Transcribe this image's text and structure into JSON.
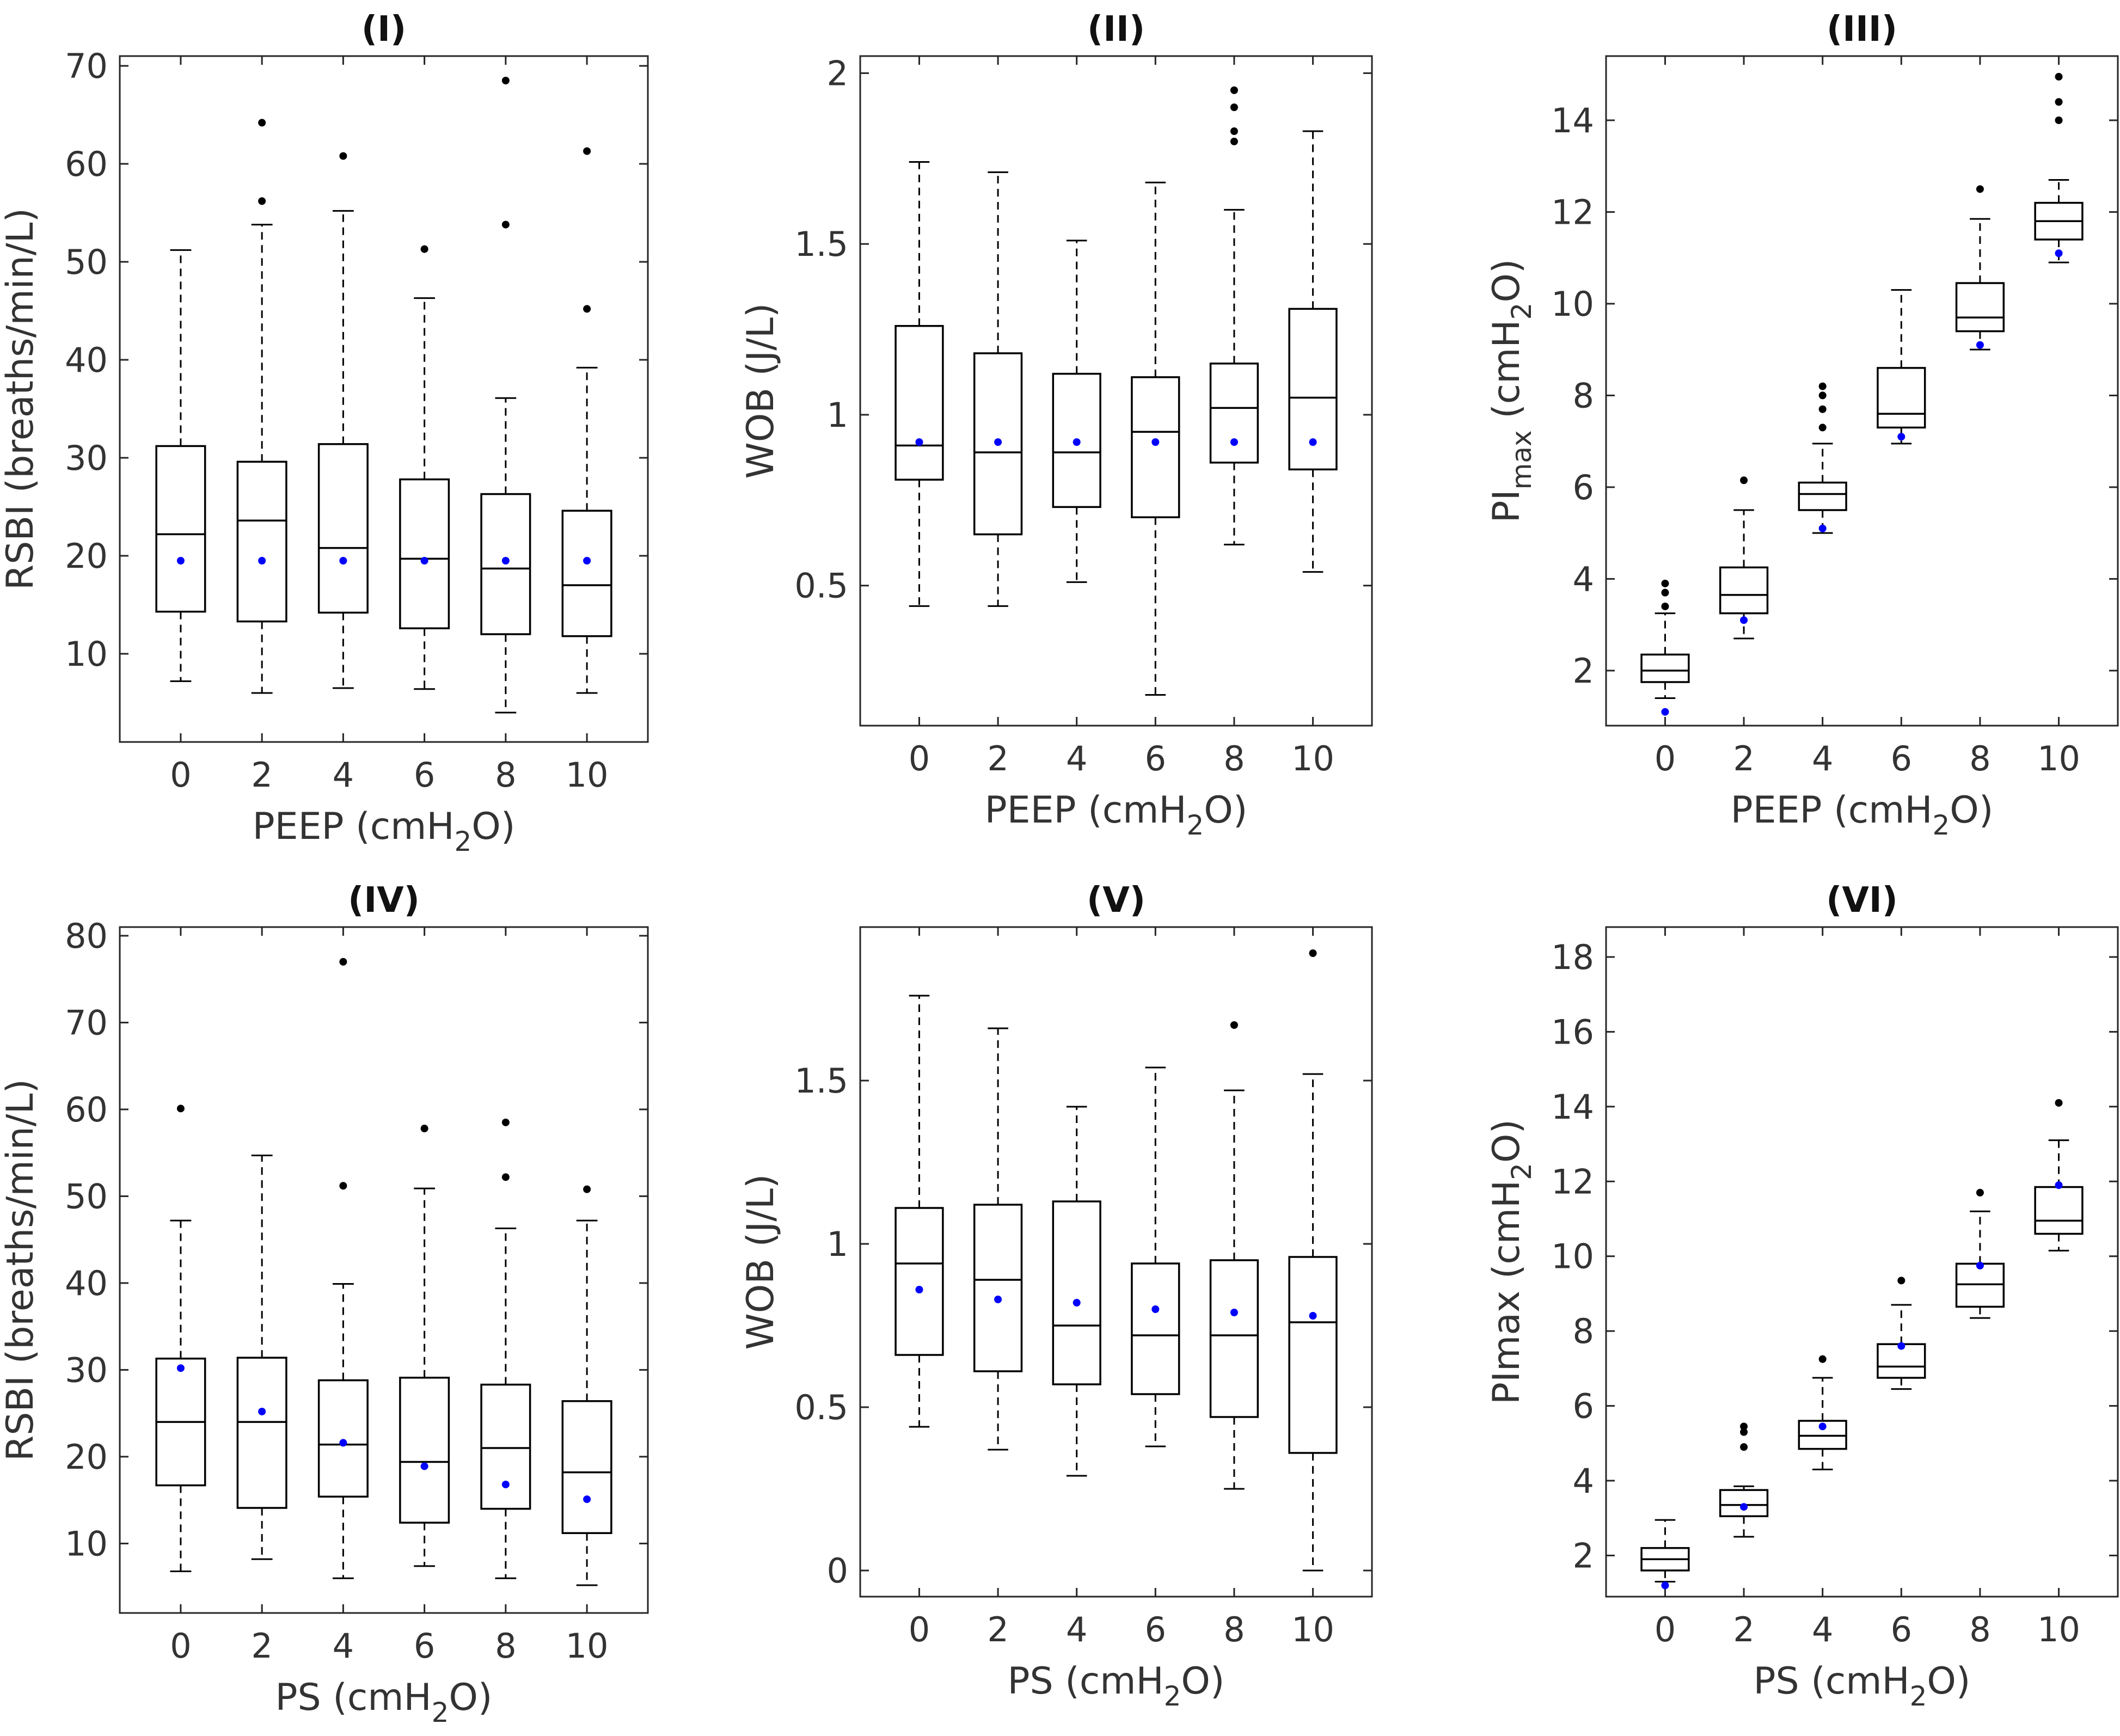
{
  "chart_data": [
    {
      "type": "box",
      "title": "(I)",
      "xlabel": {
        "main": "PEEP (cmH",
        "sub": "2",
        "tail": "O)"
      },
      "ylabel": {
        "main": "RSBI (breaths/min/L)"
      },
      "categories": [
        "0",
        "2",
        "4",
        "6",
        "8",
        "10"
      ],
      "ylim": [
        1,
        71
      ],
      "yticks": [
        10,
        20,
        30,
        40,
        50,
        60,
        70
      ],
      "boxes": [
        {
          "q1": 14.3,
          "median": 22.2,
          "q3": 31.2,
          "whisker_low": 7.2,
          "whisker_high": 51.2,
          "outliers": [],
          "mean": 19.5
        },
        {
          "q1": 13.3,
          "median": 23.6,
          "q3": 29.6,
          "whisker_low": 6.0,
          "whisker_high": 53.8,
          "outliers": [
            56.2,
            64.2
          ],
          "mean": 19.5
        },
        {
          "q1": 14.2,
          "median": 20.8,
          "q3": 31.4,
          "whisker_low": 6.5,
          "whisker_high": 55.2,
          "outliers": [
            60.8
          ],
          "mean": 19.5
        },
        {
          "q1": 12.6,
          "median": 19.7,
          "q3": 27.8,
          "whisker_low": 6.4,
          "whisker_high": 46.3,
          "outliers": [
            51.3
          ],
          "mean": 19.5
        },
        {
          "q1": 12.0,
          "median": 18.7,
          "q3": 26.3,
          "whisker_low": 4.0,
          "whisker_high": 36.1,
          "outliers": [
            53.8,
            68.5
          ],
          "mean": 19.5
        },
        {
          "q1": 11.8,
          "median": 17.0,
          "q3": 24.6,
          "whisker_low": 6.0,
          "whisker_high": 39.2,
          "outliers": [
            45.2,
            61.3
          ],
          "mean": 19.5
        }
      ]
    },
    {
      "type": "box",
      "title": "(II)",
      "xlabel": {
        "main": "PEEP (cmH",
        "sub": "2",
        "tail": "O)"
      },
      "ylabel": {
        "main": "WOB (J/L)"
      },
      "categories": [
        "0",
        "2",
        "4",
        "6",
        "8",
        "10"
      ],
      "ylim": [
        0.09,
        2.05
      ],
      "yticks": [
        0.5,
        1,
        1.5,
        2
      ],
      "yticklabels": [
        "0.5",
        "1",
        "1.5",
        "2"
      ],
      "boxes": [
        {
          "q1": 0.81,
          "median": 0.91,
          "q3": 1.26,
          "whisker_low": 0.44,
          "whisker_high": 1.74,
          "outliers": [],
          "mean": 0.92
        },
        {
          "q1": 0.65,
          "median": 0.89,
          "q3": 1.18,
          "whisker_low": 0.44,
          "whisker_high": 1.71,
          "outliers": [],
          "mean": 0.92
        },
        {
          "q1": 0.73,
          "median": 0.89,
          "q3": 1.12,
          "whisker_low": 0.51,
          "whisker_high": 1.51,
          "outliers": [],
          "mean": 0.92
        },
        {
          "q1": 0.7,
          "median": 0.95,
          "q3": 1.11,
          "whisker_low": 0.18,
          "whisker_high": 1.68,
          "outliers": [],
          "mean": 0.92
        },
        {
          "q1": 0.86,
          "median": 1.02,
          "q3": 1.15,
          "whisker_low": 0.62,
          "whisker_high": 1.6,
          "outliers": [
            1.8,
            1.83,
            1.9,
            1.95
          ],
          "mean": 0.92
        },
        {
          "q1": 0.84,
          "median": 1.05,
          "q3": 1.31,
          "whisker_low": 0.54,
          "whisker_high": 1.83,
          "outliers": [],
          "mean": 0.92
        }
      ]
    },
    {
      "type": "box",
      "title": "(III)",
      "xlabel": {
        "main": "PEEP (cmH",
        "sub": "2",
        "tail": "O)"
      },
      "ylabel": {
        "main": "PI",
        "sub": "max",
        "tail": " (cmH",
        "sub2": "2",
        "tail2": "O)"
      },
      "categories": [
        "0",
        "2",
        "4",
        "6",
        "8",
        "10"
      ],
      "ylim": [
        0.8,
        15.4
      ],
      "yticks": [
        2,
        4,
        6,
        8,
        10,
        12,
        14
      ],
      "boxes": [
        {
          "q1": 1.75,
          "median": 2.0,
          "q3": 2.35,
          "whisker_low": 1.4,
          "whisker_high": 3.25,
          "outliers": [
            3.4,
            3.7,
            3.9
          ],
          "mean": 1.1
        },
        {
          "q1": 3.25,
          "median": 3.65,
          "q3": 4.25,
          "whisker_low": 2.7,
          "whisker_high": 5.5,
          "outliers": [
            6.15
          ],
          "mean": 3.1
        },
        {
          "q1": 5.5,
          "median": 5.85,
          "q3": 6.1,
          "whisker_low": 5.0,
          "whisker_high": 6.95,
          "outliers": [
            7.3,
            7.7,
            8.0,
            8.2
          ],
          "mean": 5.1
        },
        {
          "q1": 7.3,
          "median": 7.6,
          "q3": 8.6,
          "whisker_low": 6.95,
          "whisker_high": 10.3,
          "outliers": [],
          "mean": 7.1
        },
        {
          "q1": 9.4,
          "median": 9.7,
          "q3": 10.45,
          "whisker_low": 9.0,
          "whisker_high": 11.85,
          "outliers": [
            12.5
          ],
          "mean": 9.1
        },
        {
          "q1": 11.4,
          "median": 11.8,
          "q3": 12.2,
          "whisker_low": 10.9,
          "whisker_high": 12.7,
          "outliers": [
            14.0,
            14.4,
            14.95
          ],
          "mean": 11.1
        }
      ]
    },
    {
      "type": "box",
      "title": "(IV)",
      "xlabel": {
        "main": "PS (cmH",
        "sub": "2",
        "tail": "O)"
      },
      "ylabel": {
        "main": "RSBI (breaths/min/L)"
      },
      "categories": [
        "0",
        "2",
        "4",
        "6",
        "8",
        "10"
      ],
      "ylim": [
        2,
        81
      ],
      "yticks": [
        10,
        20,
        30,
        40,
        50,
        60,
        70,
        80
      ],
      "boxes": [
        {
          "q1": 16.7,
          "median": 24.0,
          "q3": 31.3,
          "whisker_low": 6.8,
          "whisker_high": 47.2,
          "outliers": [
            60.1
          ],
          "mean": 30.2
        },
        {
          "q1": 14.1,
          "median": 24.0,
          "q3": 31.4,
          "whisker_low": 8.2,
          "whisker_high": 54.7,
          "outliers": [],
          "mean": 25.2
        },
        {
          "q1": 15.4,
          "median": 21.4,
          "q3": 28.8,
          "whisker_low": 6.0,
          "whisker_high": 39.9,
          "outliers": [
            51.2,
            77.0
          ],
          "mean": 21.6
        },
        {
          "q1": 12.4,
          "median": 19.4,
          "q3": 29.1,
          "whisker_low": 7.4,
          "whisker_high": 50.9,
          "outliers": [
            57.8
          ],
          "mean": 18.9
        },
        {
          "q1": 14.0,
          "median": 21.0,
          "q3": 28.3,
          "whisker_low": 6.0,
          "whisker_high": 46.3,
          "outliers": [
            52.2,
            58.5
          ],
          "mean": 16.8
        },
        {
          "q1": 11.2,
          "median": 18.2,
          "q3": 26.4,
          "whisker_low": 5.2,
          "whisker_high": 47.2,
          "outliers": [
            50.8
          ],
          "mean": 15.1
        }
      ]
    },
    {
      "type": "box",
      "title": "(V)",
      "xlabel": {
        "main": "PS (cmH",
        "sub": "2",
        "tail": "O)"
      },
      "ylabel": {
        "main": "WOB (J/L)"
      },
      "categories": [
        "0",
        "2",
        "4",
        "6",
        "8",
        "10"
      ],
      "ylim": [
        -0.08,
        1.97
      ],
      "yticks": [
        0,
        0.5,
        1,
        1.5
      ],
      "yticklabels": [
        "0",
        "0.5",
        "1",
        "1.5"
      ],
      "boxes": [
        {
          "q1": 0.66,
          "median": 0.94,
          "q3": 1.11,
          "whisker_low": 0.44,
          "whisker_high": 1.76,
          "outliers": [],
          "mean": 0.86
        },
        {
          "q1": 0.61,
          "median": 0.89,
          "q3": 1.12,
          "whisker_low": 0.37,
          "whisker_high": 1.66,
          "outliers": [],
          "mean": 0.83
        },
        {
          "q1": 0.57,
          "median": 0.75,
          "q3": 1.13,
          "whisker_low": 0.29,
          "whisker_high": 1.42,
          "outliers": [],
          "mean": 0.82
        },
        {
          "q1": 0.54,
          "median": 0.72,
          "q3": 0.94,
          "whisker_low": 0.38,
          "whisker_high": 1.54,
          "outliers": [],
          "mean": 0.8
        },
        {
          "q1": 0.47,
          "median": 0.72,
          "q3": 0.95,
          "whisker_low": 0.25,
          "whisker_high": 1.47,
          "outliers": [
            1.67
          ],
          "mean": 0.79
        },
        {
          "q1": 0.36,
          "median": 0.76,
          "q3": 0.96,
          "whisker_low": 0.0,
          "whisker_high": 1.52,
          "outliers": [
            1.89
          ],
          "mean": 0.78
        }
      ]
    },
    {
      "type": "box",
      "title": "(VI)",
      "xlabel": {
        "main": "PS (cmH",
        "sub": "2",
        "tail": "O)"
      },
      "ylabel": {
        "main": "PImax (cmH",
        "sub": "2",
        "tail": "O)"
      },
      "categories": [
        "0",
        "2",
        "4",
        "6",
        "8",
        "10"
      ],
      "ylim": [
        0.9,
        18.8
      ],
      "yticks": [
        2,
        4,
        6,
        8,
        10,
        12,
        14,
        16,
        18
      ],
      "boxes": [
        {
          "q1": 1.6,
          "median": 1.9,
          "q3": 2.2,
          "whisker_low": 1.3,
          "whisker_high": 2.95,
          "outliers": [],
          "mean": 1.2
        },
        {
          "q1": 3.05,
          "median": 3.35,
          "q3": 3.75,
          "whisker_low": 2.5,
          "whisker_high": 3.85,
          "outliers": [
            4.9,
            5.3,
            5.45
          ],
          "mean": 3.3
        },
        {
          "q1": 4.85,
          "median": 5.2,
          "q3": 5.6,
          "whisker_low": 4.3,
          "whisker_high": 6.75,
          "outliers": [
            7.25
          ],
          "mean": 5.45
        },
        {
          "q1": 6.75,
          "median": 7.05,
          "q3": 7.65,
          "whisker_low": 6.45,
          "whisker_high": 8.7,
          "outliers": [
            9.35
          ],
          "mean": 7.6
        },
        {
          "q1": 8.65,
          "median": 9.25,
          "q3": 9.8,
          "whisker_low": 8.35,
          "whisker_high": 11.2,
          "outliers": [
            11.7
          ],
          "mean": 9.75
        },
        {
          "q1": 10.6,
          "median": 10.95,
          "q3": 11.85,
          "whisker_low": 10.15,
          "whisker_high": 13.1,
          "outliers": [
            14.1
          ],
          "mean": 11.9
        }
      ]
    }
  ],
  "colors": {
    "box": "#000000",
    "outlier": "#000000",
    "mean_marker": "#0000ff",
    "text": "#333333"
  }
}
